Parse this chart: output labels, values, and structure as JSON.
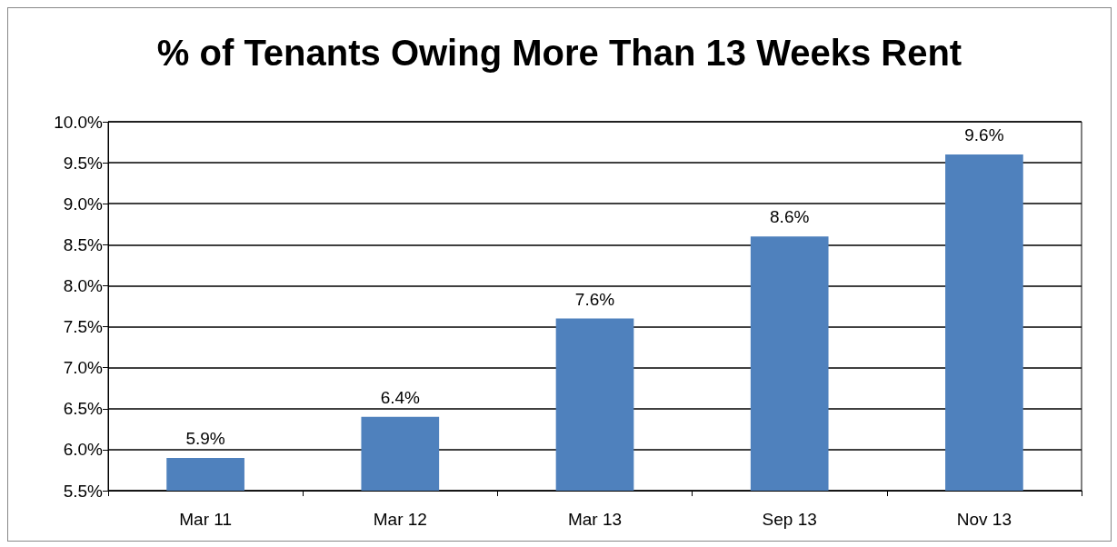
{
  "chart_data": {
    "type": "bar",
    "title": "% of Tenants Owing More Than 13 Weeks Rent",
    "categories": [
      "Mar 11",
      "Mar 12",
      "Mar 13",
      "Sep 13",
      "Nov 13"
    ],
    "values": [
      5.9,
      6.4,
      7.6,
      8.6,
      9.6
    ],
    "value_labels": [
      "5.9%",
      "6.4%",
      "7.6%",
      "8.6%",
      "9.6%"
    ],
    "color": "#4f81bd",
    "ylim": [
      5.5,
      10
    ],
    "yticks": [
      {
        "value": 5.5,
        "label": "5.5%"
      },
      {
        "value": 6,
        "label": "6.0%"
      },
      {
        "value": 6.5,
        "label": "6.5%"
      },
      {
        "value": 7,
        "label": "7.0%"
      },
      {
        "value": 7.5,
        "label": "7.5%"
      },
      {
        "value": 8,
        "label": "8.0%"
      },
      {
        "value": 8.5,
        "label": "8.5%"
      },
      {
        "value": 9,
        "label": "9.0%"
      },
      {
        "value": 9.5,
        "label": "9.5%"
      },
      {
        "value": 10,
        "label": "10.0%"
      }
    ],
    "grid": "y"
  }
}
